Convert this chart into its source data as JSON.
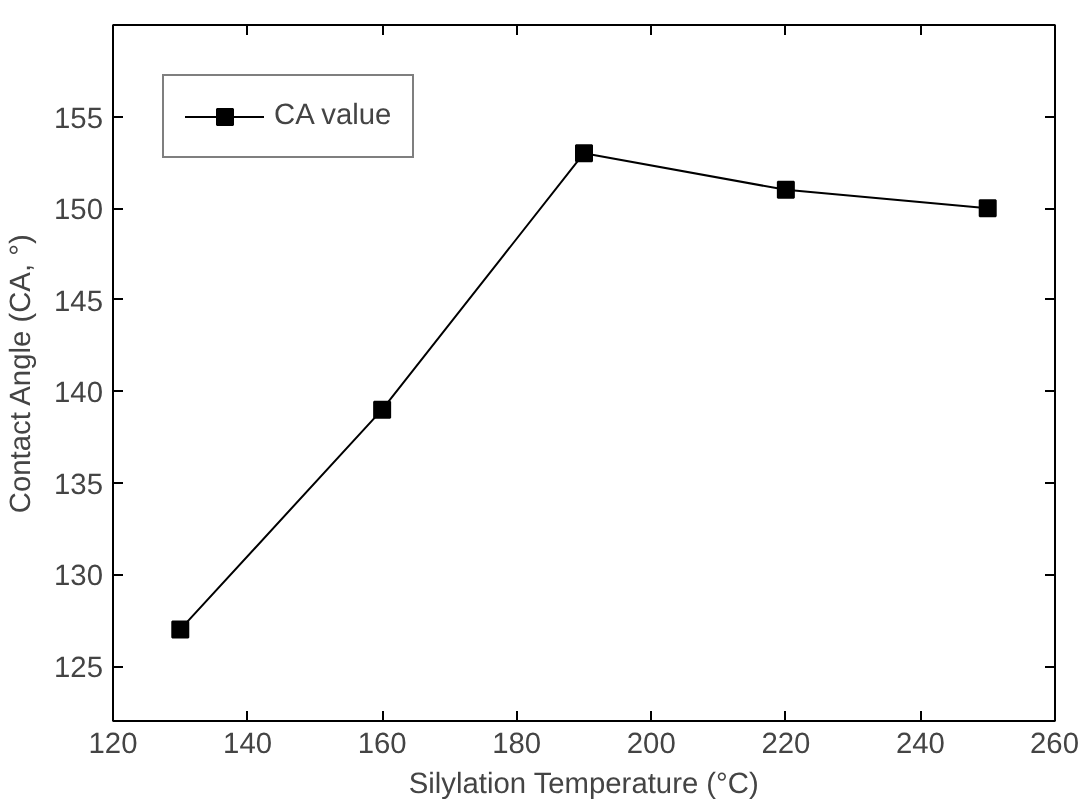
{
  "chart_data": {
    "type": "line",
    "xlabel": "Silylation Temperature (°C)",
    "ylabel": "Contact Angle (CA, °)",
    "x": [
      130,
      160,
      190,
      220,
      250
    ],
    "series": [
      {
        "name": "CA value",
        "color": "#000000",
        "values": [
          127,
          139,
          153,
          151,
          150
        ]
      }
    ],
    "xlim": [
      120,
      260
    ],
    "xticks": [
      120,
      140,
      160,
      180,
      200,
      220,
      240,
      260
    ],
    "ylim": [
      122,
      160
    ],
    "yticks": [
      125,
      130,
      135,
      140,
      145,
      150,
      155
    ],
    "grid": false,
    "legend": "top left",
    "marker": "square",
    "line_style": "solid"
  }
}
